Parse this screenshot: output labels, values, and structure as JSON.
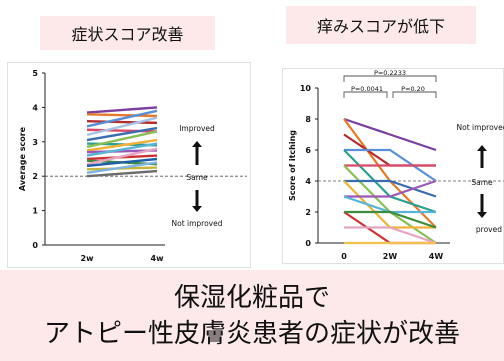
{
  "titles": {
    "left": "症状スコア改善",
    "right": "痒みスコアが低下"
  },
  "banner": {
    "line1": "保湿化粧品で",
    "line2": "アトピー性皮膚炎患者の症状が改善"
  },
  "chart_data": [
    {
      "type": "line",
      "ylabel": "Average score",
      "categories": [
        "2w",
        "4w"
      ],
      "ylim": [
        0,
        5
      ],
      "yticks": [
        0,
        1,
        2,
        3,
        4,
        5
      ],
      "reference_line": 2,
      "annotations": {
        "improved": "Improved",
        "same": "Same",
        "not_improved": "Not improved"
      },
      "series": [
        {
          "values": [
            3.85,
            4.0
          ],
          "color": "#7a3fa0"
        },
        {
          "values": [
            3.8,
            3.75
          ],
          "color": "#e47a2c"
        },
        {
          "values": [
            3.6,
            3.55
          ],
          "color": "#b02e2e"
        },
        {
          "values": [
            3.45,
            3.9
          ],
          "color": "#5b8fd6"
        },
        {
          "values": [
            3.35,
            3.3
          ],
          "color": "#d94a6a"
        },
        {
          "values": [
            3.2,
            3.7
          ],
          "color": "#a8c4e8"
        },
        {
          "values": [
            3.05,
            3.4
          ],
          "color": "#3a6cb0"
        },
        {
          "values": [
            2.95,
            2.9
          ],
          "color": "#2e9e8f"
        },
        {
          "values": [
            2.85,
            3.3
          ],
          "color": "#88c057"
        },
        {
          "values": [
            2.75,
            3.05
          ],
          "color": "#f0b13a"
        },
        {
          "values": [
            2.7,
            2.75
          ],
          "color": "#9b59b6"
        },
        {
          "values": [
            2.6,
            2.95
          ],
          "color": "#5ab4d8"
        },
        {
          "values": [
            2.5,
            2.6
          ],
          "color": "#cc3333"
        },
        {
          "values": [
            2.45,
            2.35
          ],
          "color": "#3d8c3d"
        },
        {
          "values": [
            2.35,
            2.8
          ],
          "color": "#e6a3c2"
        },
        {
          "values": [
            2.3,
            2.5
          ],
          "color": "#1f5fa8"
        },
        {
          "values": [
            2.2,
            2.25
          ],
          "color": "#c7b23a"
        },
        {
          "values": [
            2.1,
            2.4
          ],
          "color": "#7fb3e0"
        },
        {
          "values": [
            2.0,
            2.15
          ],
          "color": "#6b6b6b"
        }
      ]
    },
    {
      "type": "line",
      "ylabel": "Score of itching",
      "categories": [
        "0",
        "2W",
        "4W"
      ],
      "ylim": [
        0,
        10
      ],
      "yticks": [
        0,
        2,
        4,
        6,
        8,
        10
      ],
      "reference_line": 4,
      "pvalues": {
        "top": "P=0.2233",
        "left": "P=0.0041",
        "right": "P=0.20"
      },
      "annotations": {
        "improved": "Not improved",
        "same": "Same",
        "not_improved": "proved"
      },
      "series": [
        {
          "values": [
            8,
            7,
            6
          ],
          "color": "#7a3fa0"
        },
        {
          "values": [
            8,
            4,
            1
          ],
          "color": "#e47a2c"
        },
        {
          "values": [
            7,
            5,
            5
          ],
          "color": "#b02e2e"
        },
        {
          "values": [
            6,
            6,
            4
          ],
          "color": "#5b8fd6"
        },
        {
          "values": [
            6,
            3,
            2
          ],
          "color": "#2e9e8f"
        },
        {
          "values": [
            5,
            5,
            5
          ],
          "color": "#d94a6a"
        },
        {
          "values": [
            5,
            2,
            0
          ],
          "color": "#88c057"
        },
        {
          "values": [
            4,
            4,
            3
          ],
          "color": "#3a6cb0"
        },
        {
          "values": [
            4,
            1,
            1
          ],
          "color": "#f0b13a"
        },
        {
          "values": [
            3,
            3,
            4
          ],
          "color": "#9b59b6"
        },
        {
          "values": [
            3,
            2,
            2
          ],
          "color": "#5ab4d8"
        },
        {
          "values": [
            2,
            0,
            0
          ],
          "color": "#cc3333"
        },
        {
          "values": [
            2,
            2,
            1
          ],
          "color": "#3d8c3d"
        },
        {
          "values": [
            1,
            1,
            0
          ],
          "color": "#e6a3c2"
        },
        {
          "values": [
            0,
            0,
            0
          ],
          "color": "#f2c14e"
        }
      ]
    }
  ]
}
